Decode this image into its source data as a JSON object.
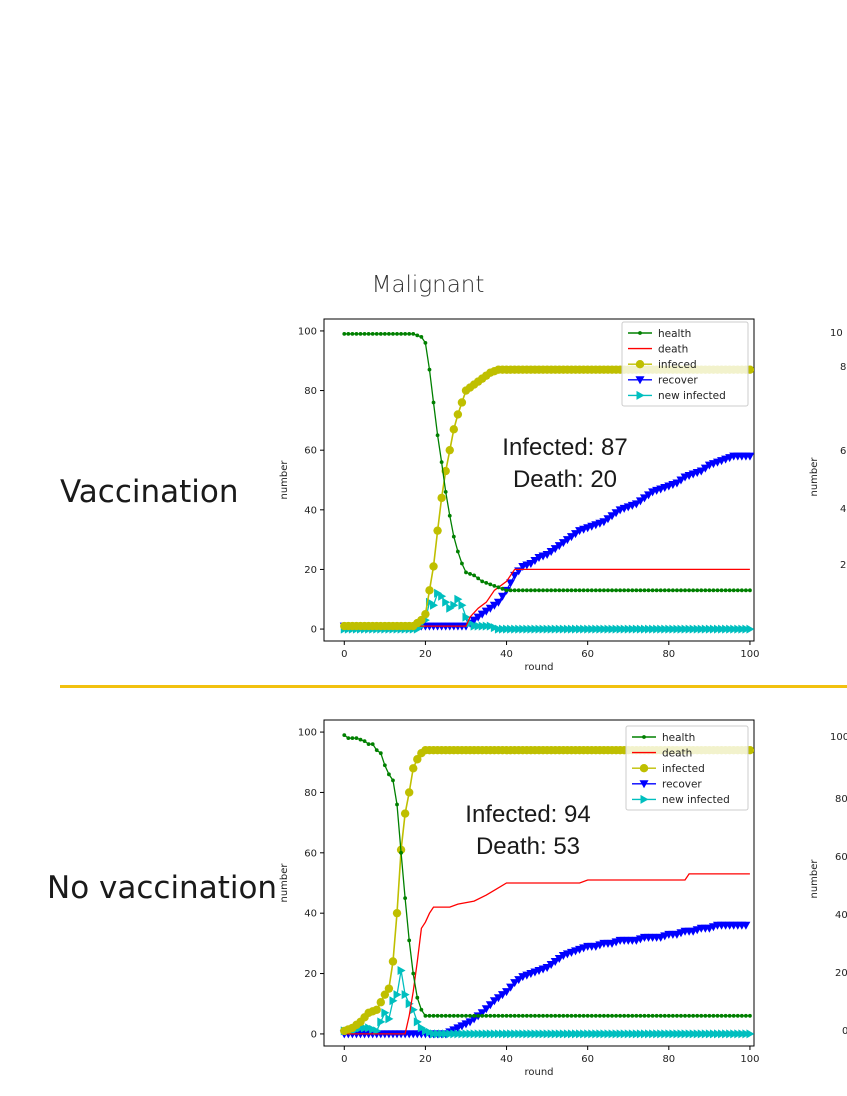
{
  "header": {
    "title": "Malignant"
  },
  "rows": [
    {
      "label": "Vaccination"
    },
    {
      "label": "No vaccination"
    }
  ],
  "partial_ticks": {
    "row1": [
      "10",
      "8",
      "6",
      "4",
      "2"
    ],
    "row1_ylabel": "number",
    "row2": [
      "100",
      "80",
      "60",
      "40",
      "20",
      "0"
    ],
    "row2_ylabel": "number"
  },
  "colors": {
    "health": "#008000",
    "death": "#ff0000",
    "infected": "#bfbf00",
    "recover": "#0000ff",
    "new_infected": "#00bfbf",
    "divider": "#f2c10f"
  },
  "chart_data": [
    {
      "type": "line",
      "xlabel": "round",
      "ylabel": "number",
      "xlim": [
        -5,
        101
      ],
      "ylim": [
        -4,
        104
      ],
      "xticks": [
        0,
        20,
        40,
        60,
        80,
        100
      ],
      "yticks": [
        0,
        20,
        40,
        60,
        80,
        100
      ],
      "legend": "top-right",
      "annotations": [
        "Infected: 87",
        "Death: 20"
      ],
      "series": [
        {
          "name": "health",
          "marker": "dot",
          "points": [
            [
              0,
              99
            ],
            [
              17,
              99
            ],
            [
              19,
              98
            ],
            [
              20,
              96
            ],
            [
              21,
              87
            ],
            [
              22,
              76
            ],
            [
              23,
              65
            ],
            [
              24,
              56
            ],
            [
              25,
              46
            ],
            [
              26,
              38
            ],
            [
              27,
              31
            ],
            [
              28,
              26
            ],
            [
              29,
              22
            ],
            [
              30,
              19
            ],
            [
              32,
              18
            ],
            [
              34,
              16
            ],
            [
              36,
              15
            ],
            [
              38,
              14
            ],
            [
              40,
              13
            ],
            [
              100,
              13
            ]
          ]
        },
        {
          "name": "death",
          "marker": "none",
          "points": [
            [
              0,
              1
            ],
            [
              30,
              1
            ],
            [
              31,
              4
            ],
            [
              33,
              7
            ],
            [
              35,
              9
            ],
            [
              37,
              13
            ],
            [
              40,
              16
            ],
            [
              42,
              20
            ],
            [
              100,
              20
            ]
          ]
        },
        {
          "name": "infeced",
          "marker": "circle",
          "points": [
            [
              0,
              1
            ],
            [
              17,
              1
            ],
            [
              19,
              3
            ],
            [
              20,
              5
            ],
            [
              21,
              13
            ],
            [
              22,
              21
            ],
            [
              23,
              33
            ],
            [
              24,
              44
            ],
            [
              25,
              53
            ],
            [
              26,
              60
            ],
            [
              27,
              67
            ],
            [
              28,
              72
            ],
            [
              29,
              76
            ],
            [
              30,
              80
            ],
            [
              32,
              82
            ],
            [
              34,
              84
            ],
            [
              36,
              86
            ],
            [
              38,
              87
            ],
            [
              100,
              87
            ]
          ]
        },
        {
          "name": "recover",
          "marker": "triangle-down",
          "points": [
            [
              0,
              1
            ],
            [
              30,
              1
            ],
            [
              32,
              3
            ],
            [
              35,
              6
            ],
            [
              38,
              9
            ],
            [
              40,
              13
            ],
            [
              42,
              18
            ],
            [
              44,
              21
            ],
            [
              46,
              22
            ],
            [
              48,
              24
            ],
            [
              50,
              25
            ],
            [
              52,
              27
            ],
            [
              54,
              29
            ],
            [
              56,
              31
            ],
            [
              58,
              33
            ],
            [
              60,
              34
            ],
            [
              62,
              35
            ],
            [
              64,
              36
            ],
            [
              66,
              38
            ],
            [
              68,
              40
            ],
            [
              70,
              41
            ],
            [
              72,
              42
            ],
            [
              74,
              44
            ],
            [
              76,
              46
            ],
            [
              78,
              47
            ],
            [
              80,
              48
            ],
            [
              82,
              49
            ],
            [
              84,
              51
            ],
            [
              86,
              52
            ],
            [
              88,
              53
            ],
            [
              90,
              55
            ],
            [
              92,
              56
            ],
            [
              94,
              57
            ],
            [
              96,
              58
            ],
            [
              98,
              58
            ],
            [
              100,
              58
            ]
          ]
        },
        {
          "name": "new infected",
          "marker": "triangle-right",
          "points": [
            [
              0,
              0
            ],
            [
              18,
              0
            ],
            [
              19,
              1
            ],
            [
              20,
              3
            ],
            [
              21,
              9
            ],
            [
              22,
              8
            ],
            [
              23,
              12
            ],
            [
              24,
              11
            ],
            [
              25,
              9
            ],
            [
              26,
              7
            ],
            [
              27,
              8
            ],
            [
              28,
              10
            ],
            [
              29,
              8
            ],
            [
              30,
              4
            ],
            [
              31,
              2
            ],
            [
              32,
              1
            ],
            [
              34,
              1
            ],
            [
              36,
              1
            ],
            [
              38,
              0
            ],
            [
              100,
              0
            ]
          ]
        }
      ]
    },
    {
      "type": "line",
      "xlabel": "round",
      "ylabel": "number",
      "xlim": [
        -5,
        101
      ],
      "ylim": [
        -4,
        104
      ],
      "xticks": [
        0,
        20,
        40,
        60,
        80,
        100
      ],
      "yticks": [
        0,
        20,
        40,
        60,
        80,
        100
      ],
      "legend": "top-right",
      "annotations": [
        "Infected: 94",
        "Death: 53"
      ],
      "series": [
        {
          "name": "health",
          "marker": "dot",
          "points": [
            [
              0,
              99
            ],
            [
              1,
              98
            ],
            [
              3,
              98
            ],
            [
              5,
              97
            ],
            [
              6,
              96
            ],
            [
              7,
              96
            ],
            [
              8,
              94
            ],
            [
              9,
              93
            ],
            [
              10,
              89
            ],
            [
              11,
              86
            ],
            [
              12,
              84
            ],
            [
              13,
              76
            ],
            [
              14,
              60
            ],
            [
              15,
              45
            ],
            [
              16,
              31
            ],
            [
              17,
              20
            ],
            [
              18,
              12
            ],
            [
              19,
              8
            ],
            [
              20,
              6
            ],
            [
              100,
              6
            ]
          ]
        },
        {
          "name": "death",
          "marker": "none",
          "points": [
            [
              0,
              0
            ],
            [
              15,
              0
            ],
            [
              16,
              6
            ],
            [
              17,
              14
            ],
            [
              18,
              24
            ],
            [
              19,
              35
            ],
            [
              20,
              37
            ],
            [
              21,
              40
            ],
            [
              22,
              42
            ],
            [
              26,
              42
            ],
            [
              28,
              43
            ],
            [
              32,
              44
            ],
            [
              35,
              46
            ],
            [
              40,
              50
            ],
            [
              58,
              50
            ],
            [
              60,
              51
            ],
            [
              84,
              51
            ],
            [
              85,
              53
            ],
            [
              100,
              53
            ]
          ]
        },
        {
          "name": "infected",
          "marker": "circle",
          "points": [
            [
              0,
              1
            ],
            [
              2,
              2
            ],
            [
              4,
              4
            ],
            [
              6,
              7
            ],
            [
              8,
              8
            ],
            [
              10,
              13
            ],
            [
              11,
              15
            ],
            [
              12,
              24
            ],
            [
              13,
              40
            ],
            [
              14,
              61
            ],
            [
              15,
              73
            ],
            [
              16,
              80
            ],
            [
              17,
              88
            ],
            [
              18,
              91
            ],
            [
              19,
              93
            ],
            [
              20,
              94
            ],
            [
              100,
              94
            ]
          ]
        },
        {
          "name": "recover",
          "marker": "triangle-down",
          "points": [
            [
              0,
              0
            ],
            [
              25,
              0
            ],
            [
              28,
              2
            ],
            [
              31,
              4
            ],
            [
              34,
              7
            ],
            [
              37,
              11
            ],
            [
              40,
              14
            ],
            [
              42,
              17
            ],
            [
              44,
              19
            ],
            [
              46,
              20
            ],
            [
              48,
              21
            ],
            [
              50,
              22
            ],
            [
              52,
              24
            ],
            [
              54,
              26
            ],
            [
              56,
              27
            ],
            [
              58,
              28
            ],
            [
              60,
              29
            ],
            [
              62,
              29
            ],
            [
              64,
              30
            ],
            [
              66,
              30
            ],
            [
              68,
              31
            ],
            [
              70,
              31
            ],
            [
              72,
              31
            ],
            [
              74,
              32
            ],
            [
              76,
              32
            ],
            [
              78,
              32
            ],
            [
              80,
              33
            ],
            [
              82,
              33
            ],
            [
              84,
              34
            ],
            [
              86,
              34
            ],
            [
              88,
              35
            ],
            [
              90,
              35
            ],
            [
              92,
              36
            ],
            [
              94,
              36
            ],
            [
              96,
              36
            ],
            [
              98,
              36
            ],
            [
              99,
              36
            ]
          ]
        },
        {
          "name": "new infected",
          "marker": "triangle-right",
          "points": [
            [
              0,
              1
            ],
            [
              2,
              1
            ],
            [
              4,
              2
            ],
            [
              6,
              2
            ],
            [
              8,
              1
            ],
            [
              9,
              4
            ],
            [
              10,
              7
            ],
            [
              11,
              5
            ],
            [
              12,
              11
            ],
            [
              13,
              13
            ],
            [
              14,
              21
            ],
            [
              15,
              13
            ],
            [
              16,
              10
            ],
            [
              17,
              8
            ],
            [
              18,
              4
            ],
            [
              19,
              2
            ],
            [
              20,
              1
            ],
            [
              22,
              0
            ],
            [
              100,
              0
            ]
          ]
        }
      ]
    }
  ]
}
